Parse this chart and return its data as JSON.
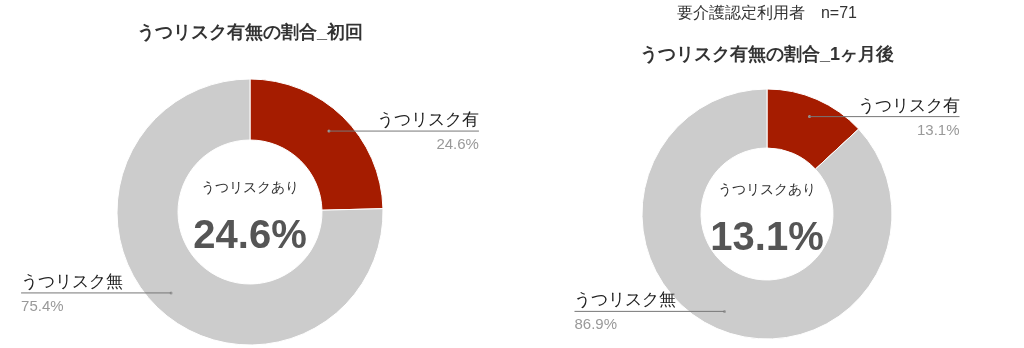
{
  "chart_data": [
    {
      "type": "donut",
      "title": "うつリスク有無の割合_初回",
      "categories": [
        "うつリスク有",
        "うつリスク無"
      ],
      "values": [
        24.6,
        75.4
      ],
      "colors": [
        "#a51c00",
        "#cccccc"
      ],
      "value_labels": [
        "24.6%",
        "75.4%"
      ],
      "annotations": [
        "うつリスクあり",
        "24.6%"
      ]
    },
    {
      "type": "donut",
      "title": "うつリスク有無の割合_1ヶ月後",
      "subtitle": "要介護認定利用者　n=71",
      "categories": [
        "うつリスク有",
        "うつリスク無"
      ],
      "values": [
        13.1,
        86.9
      ],
      "colors": [
        "#a51c00",
        "#cccccc"
      ],
      "value_labels": [
        "13.1%",
        "86.9%"
      ],
      "annotations": [
        "うつリスクあり",
        "13.1%"
      ]
    }
  ]
}
